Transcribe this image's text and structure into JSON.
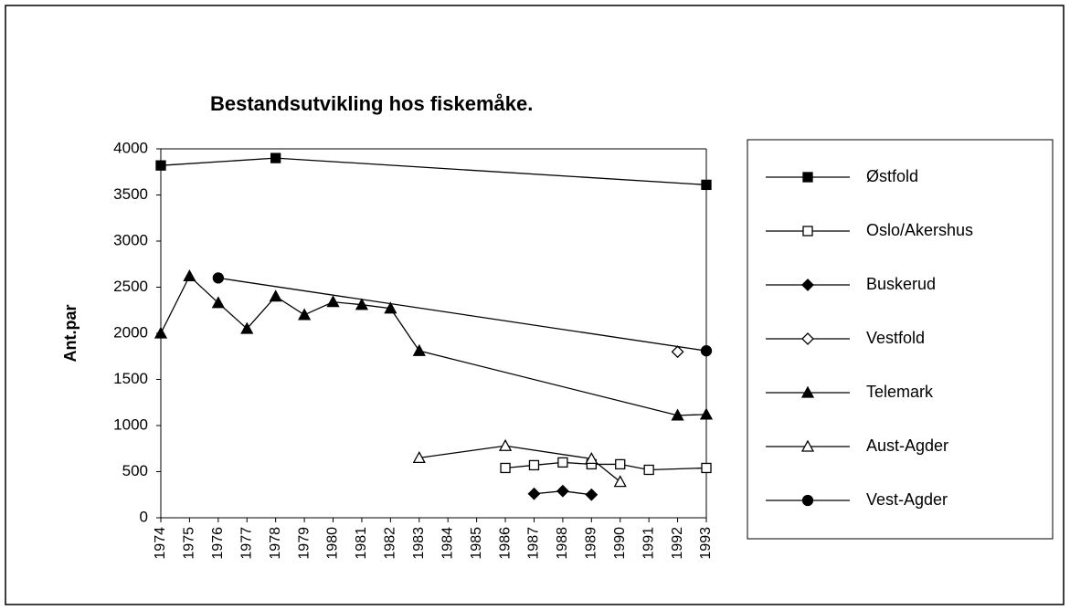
{
  "chart_data": {
    "type": "line",
    "title": "Bestandsutvikling hos fiskemåke.",
    "y_label": "Ant.par",
    "xlim": [
      1974,
      1993
    ],
    "xticks": [
      1974,
      1975,
      1976,
      1977,
      1978,
      1979,
      1980,
      1981,
      1982,
      1983,
      1984,
      1985,
      1986,
      1987,
      1988,
      1989,
      1990,
      1991,
      1992,
      1993
    ],
    "ylim": [
      0,
      4000
    ],
    "yticks": [
      0,
      500,
      1000,
      1500,
      2000,
      2500,
      3000,
      3500,
      4000
    ],
    "legend": "right",
    "series": [
      {
        "name": "Østfold",
        "color": "#000000",
        "marker": "square",
        "filled": true,
        "x": [
          1974,
          1978,
          1993
        ],
        "values": [
          3820,
          3900,
          3610
        ]
      },
      {
        "name": "Oslo/Akershus",
        "color": "#000000",
        "marker": "square",
        "filled": false,
        "x": [
          1986,
          1987,
          1988,
          1989,
          1990,
          1991,
          1993
        ],
        "values": [
          540,
          570,
          600,
          580,
          580,
          520,
          540
        ]
      },
      {
        "name": "Buskerud",
        "color": "#000000",
        "marker": "diamond",
        "filled": true,
        "x": [
          1987,
          1988,
          1989
        ],
        "values": [
          260,
          290,
          250
        ]
      },
      {
        "name": "Vestfold",
        "color": "#000000",
        "marker": "diamond",
        "filled": false,
        "x": [
          1992
        ],
        "values": [
          1800
        ]
      },
      {
        "name": "Telemark",
        "color": "#000000",
        "marker": "triangle",
        "filled": true,
        "x": [
          1974,
          1975,
          1976,
          1977,
          1978,
          1979,
          1980,
          1981,
          1982,
          1983,
          1992,
          1993
        ],
        "values": [
          2000,
          2620,
          2330,
          2050,
          2400,
          2200,
          2340,
          2310,
          2270,
          1810,
          1110,
          1120
        ]
      },
      {
        "name": "Aust-Agder",
        "color": "#000000",
        "marker": "triangle",
        "filled": false,
        "x": [
          1983,
          1986,
          1989,
          1990
        ],
        "values": [
          650,
          780,
          640,
          390
        ]
      },
      {
        "name": "Vest-Agder",
        "color": "#000000",
        "marker": "circle",
        "filled": true,
        "x": [
          1976,
          1993
        ],
        "values": [
          2600,
          1810
        ]
      }
    ]
  }
}
